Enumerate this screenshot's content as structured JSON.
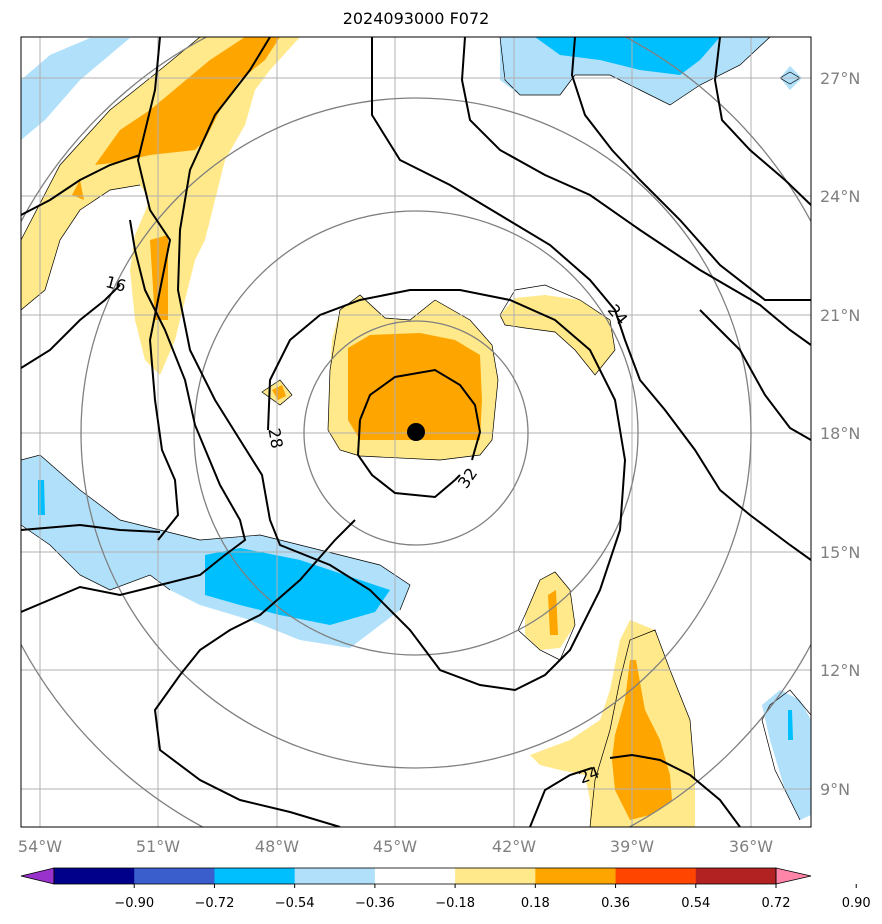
{
  "title": "2024093000 F072",
  "map": {
    "lon_labels": [
      "54°W",
      "51°W",
      "48°W",
      "45°W",
      "42°W",
      "39°W",
      "36°W"
    ],
    "lat_labels": [
      "27°N",
      "24°N",
      "21°N",
      "18°N",
      "15°N",
      "12°N",
      "9°N"
    ],
    "contour_labels": [
      "16",
      "24",
      "28",
      "32",
      "24"
    ],
    "storm_center": "filled black dot near 44.4°W, 18°N"
  },
  "colorbar": {
    "ticks": [
      "−0.90",
      "−0.72",
      "−0.54",
      "−0.36",
      "−0.18",
      "0.18",
      "0.36",
      "0.54",
      "0.72",
      "0.90"
    ],
    "colors": [
      "#9932cc",
      "#00008b",
      "#3a5fcd",
      "#00bfff",
      "#b0e0fa",
      "#ffffff",
      "#ffe98a",
      "#ffa500",
      "#ff4500",
      "#b22222",
      "#ff85a8"
    ]
  }
}
